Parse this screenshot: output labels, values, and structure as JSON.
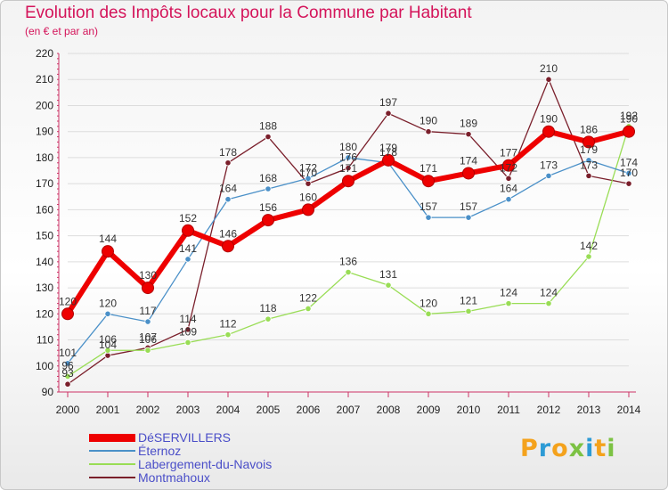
{
  "header": {
    "title": "Evolution des Impôts locaux pour la Commune par Habitant",
    "subtitle": "(en € et par an)"
  },
  "brand": {
    "letters": [
      "P",
      "r",
      "o",
      "x",
      "i",
      "t",
      "i"
    ],
    "colors": [
      "#f4a21c",
      "#2d9bd5",
      "#f4a21c",
      "#7cc243",
      "#2d9bd5",
      "#f4a21c",
      "#7cc243"
    ]
  },
  "colors": {
    "title": "#d4145a",
    "axis": "#cc3366",
    "grid": "#dddddd",
    "legend_text": "#4a4ec8"
  },
  "chart_data": {
    "type": "line",
    "title": "Evolution des Impôts locaux pour la Commune par Habitant",
    "subtitle": "(en € et par an)",
    "x": [
      "2000",
      "2001",
      "2002",
      "2003",
      "2004",
      "2005",
      "2006",
      "2007",
      "2008",
      "2009",
      "2010",
      "2011",
      "2012",
      "2013",
      "2014"
    ],
    "ylim": [
      90,
      220
    ],
    "yticks": [
      90,
      100,
      110,
      120,
      130,
      140,
      150,
      160,
      170,
      180,
      190,
      200,
      210,
      220
    ],
    "grid": true,
    "legend_position": "bottom-left",
    "series": [
      {
        "name": "Montmahoux",
        "color": "#7a1f2b",
        "width": 1.3,
        "values": [
          93,
          104,
          107,
          114,
          178,
          188,
          170,
          176,
          197,
          190,
          189,
          172,
          210,
          173,
          170
        ]
      },
      {
        "name": "Labergement-du-Navois",
        "color": "#99dd55",
        "width": 1.3,
        "values": [
          96,
          106,
          106,
          109,
          112,
          118,
          122,
          136,
          131,
          120,
          121,
          124,
          124,
          142,
          192
        ]
      },
      {
        "name": "Éternoz",
        "color": "#4a90c8",
        "width": 1.3,
        "values": [
          101,
          120,
          117,
          141,
          164,
          168,
          172,
          180,
          178,
          157,
          157,
          164,
          173,
          179,
          174
        ]
      },
      {
        "name": "DéSERVILLERS",
        "color": "#ee0000",
        "width": 6,
        "values": [
          120,
          144,
          130,
          152,
          146,
          156,
          160,
          171,
          179,
          171,
          174,
          177,
          190,
          186,
          190
        ]
      }
    ],
    "legend_order": [
      "DéSERVILLERS",
      "Éternoz",
      "Labergement-du-Navois",
      "Montmahoux"
    ]
  }
}
